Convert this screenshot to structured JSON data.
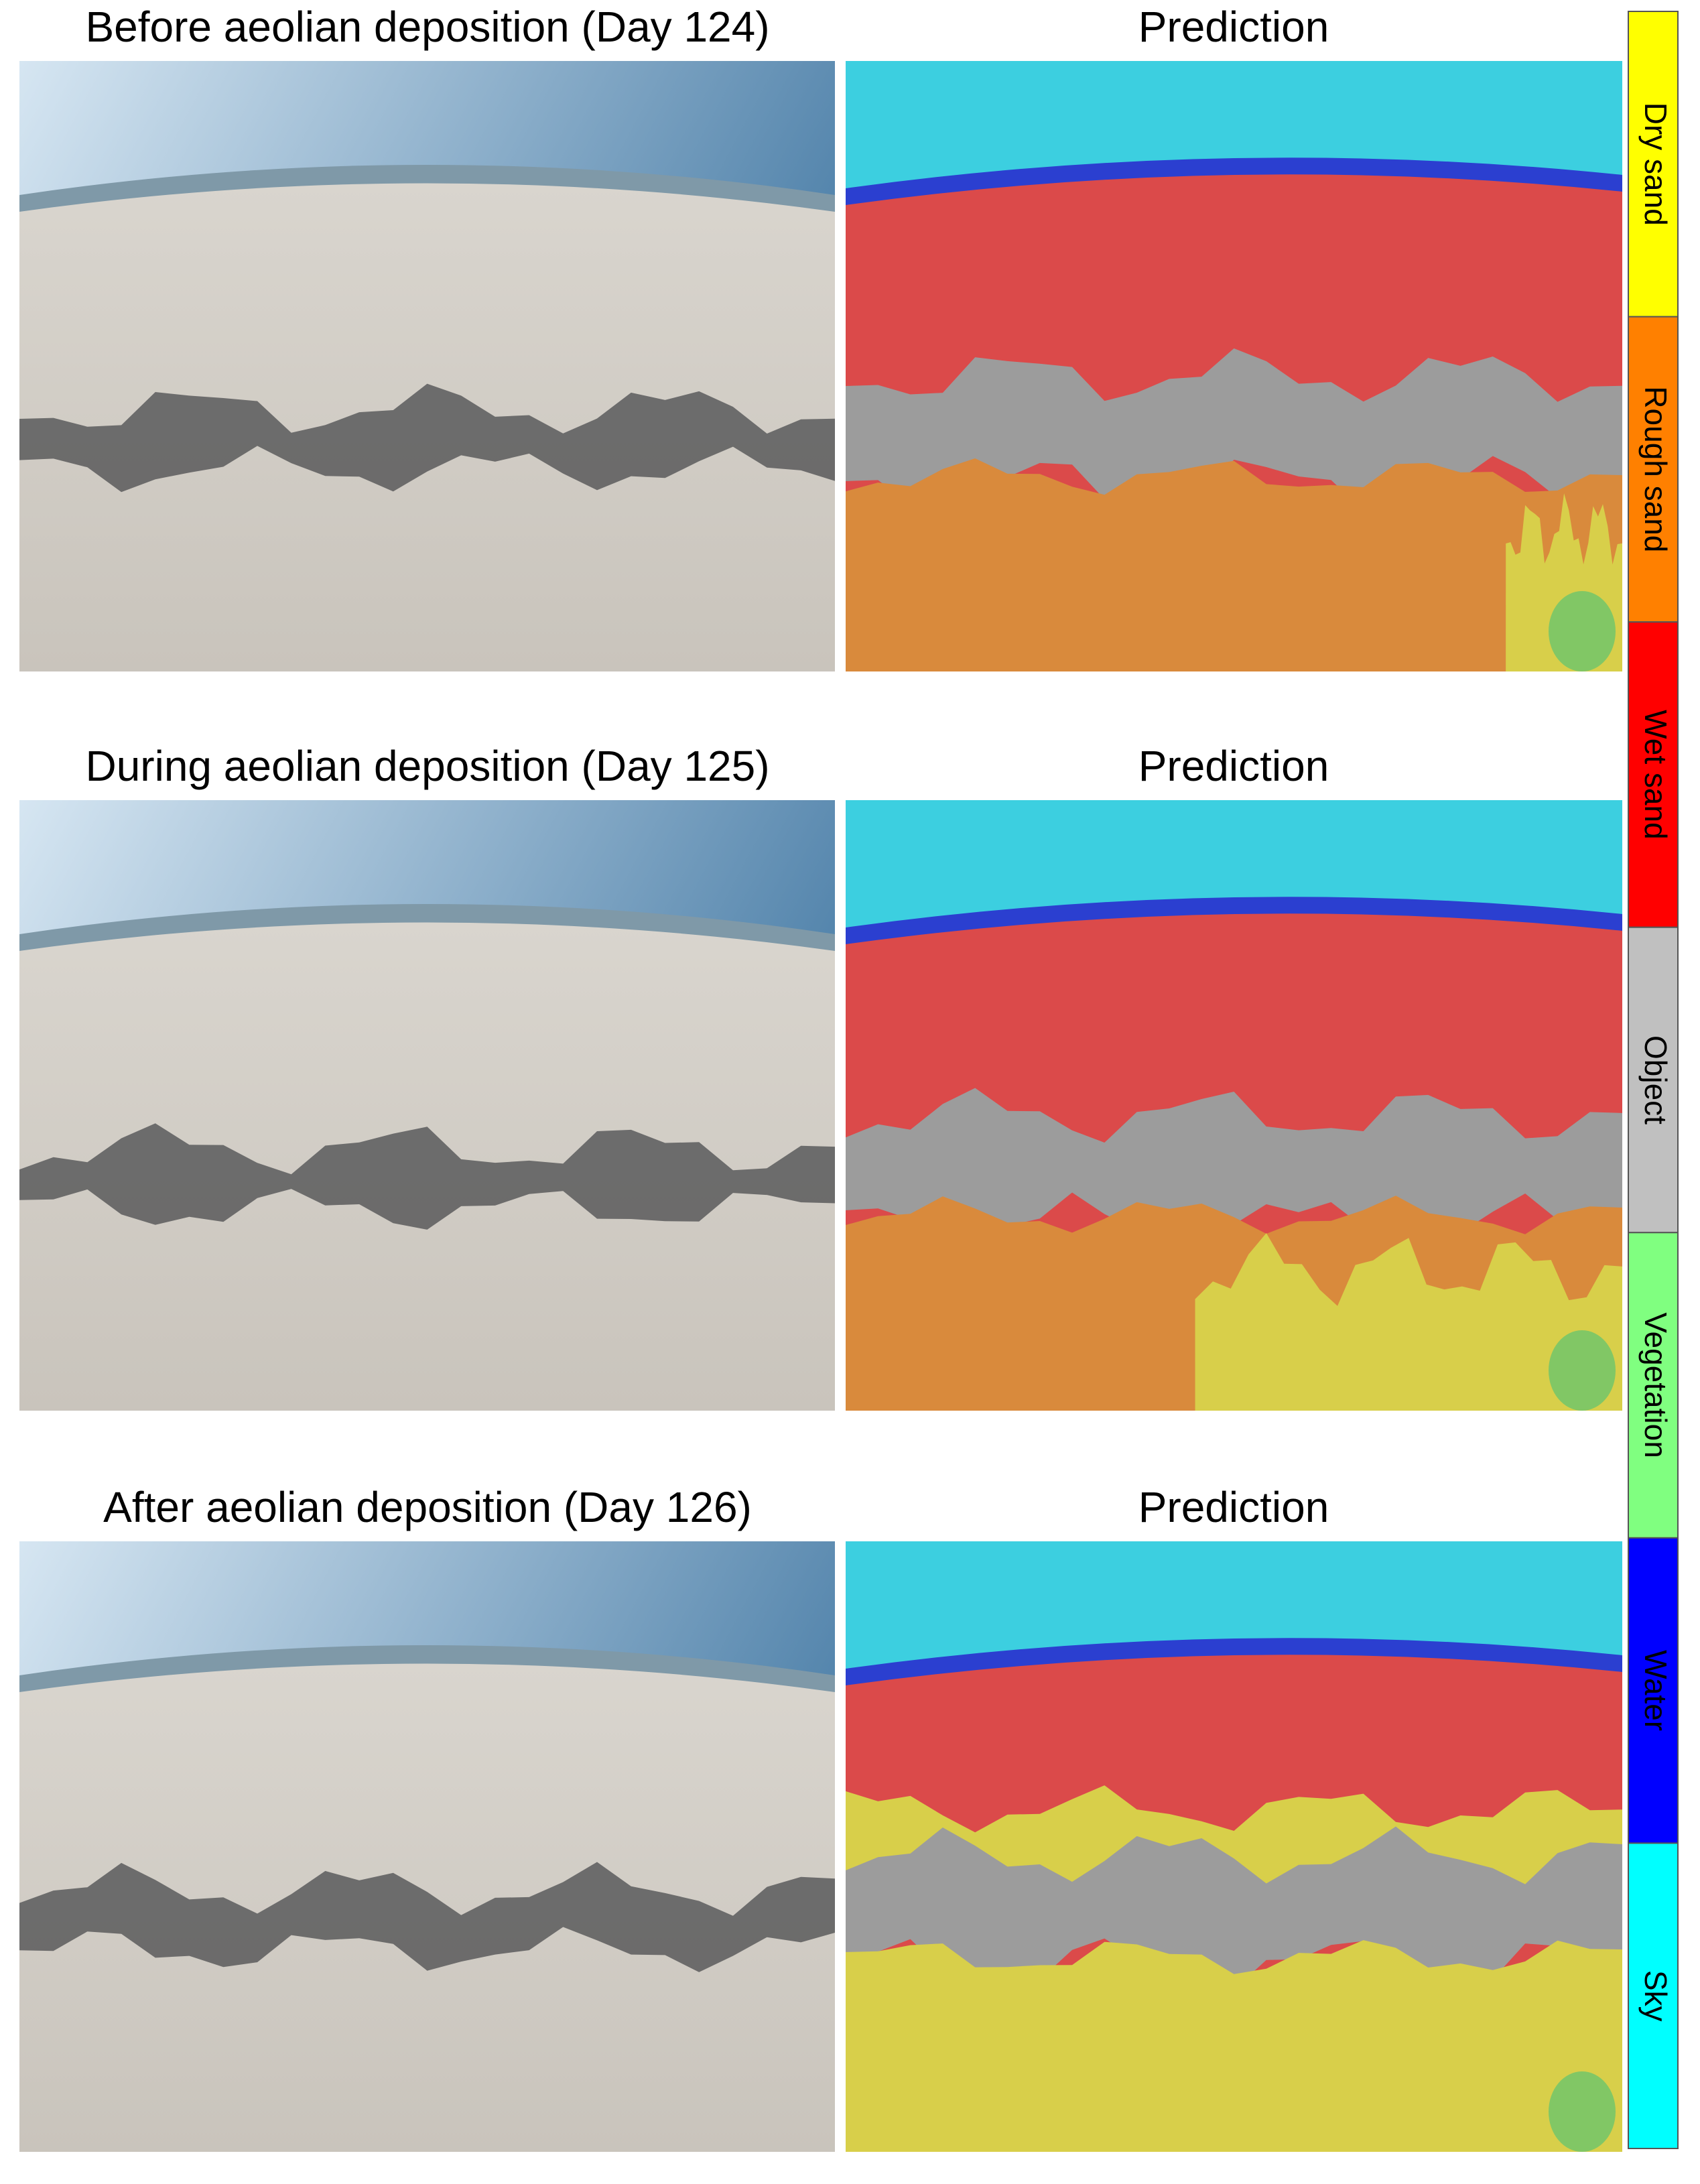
{
  "panels": [
    {
      "title": "Before aeolian deposition (Day 124)",
      "prediction_title": "Prediction"
    },
    {
      "title": "During aeolian deposition (Day 125)",
      "prediction_title": "Prediction"
    },
    {
      "title": "After aeolian deposition (Day 126)",
      "prediction_title": "Prediction"
    }
  ],
  "legend": [
    {
      "label": "Dry sand",
      "color": "#ffff00"
    },
    {
      "label": "Rough sand",
      "color": "#ff8000"
    },
    {
      "label": "Wet sand",
      "color": "#ff0000"
    },
    {
      "label": "Object",
      "color": "#c0c0c0"
    },
    {
      "label": "Vegetation",
      "color": "#80ff80"
    },
    {
      "label": "Water",
      "color": "#0000ff"
    },
    {
      "label": "Sky",
      "color": "#00ffff"
    }
  ]
}
